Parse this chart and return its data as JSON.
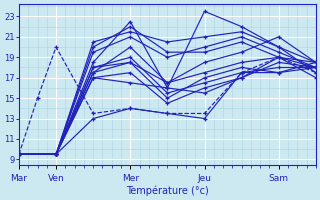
{
  "xlabel": "Température (°c)",
  "bg_color": "#cce8f0",
  "line_color": "#2222bb",
  "grid_major_color": "#ffffff",
  "grid_minor_color": "#aad4e0",
  "ylim": [
    8.5,
    24.2
  ],
  "yticks": [
    9,
    11,
    13,
    15,
    17,
    19,
    21,
    23
  ],
  "xlim": [
    0,
    96
  ],
  "day_ticks": [
    0,
    12,
    36,
    60,
    84
  ],
  "day_labels": [
    "Mar",
    "Ven",
    "Mer",
    "Jeu",
    "Sam"
  ],
  "series": [
    {
      "x": [
        0,
        12,
        24,
        36,
        48,
        60,
        72,
        84,
        96
      ],
      "y": [
        9.5,
        9.5,
        20.0,
        22.0,
        19.5,
        19.5,
        20.5,
        19.0,
        18.0
      ],
      "style": "-"
    },
    {
      "x": [
        0,
        12,
        24,
        36,
        48,
        60,
        72,
        84,
        96
      ],
      "y": [
        9.5,
        9.5,
        20.5,
        21.5,
        20.5,
        21.0,
        21.5,
        20.0,
        18.5
      ],
      "style": "-"
    },
    {
      "x": [
        0,
        12,
        24,
        36,
        48,
        60,
        72,
        84,
        96
      ],
      "y": [
        9.5,
        9.5,
        19.5,
        21.0,
        19.0,
        20.0,
        21.0,
        19.5,
        18.0
      ],
      "style": "-"
    },
    {
      "x": [
        0,
        12,
        24,
        36,
        48,
        60,
        72,
        84,
        96
      ],
      "y": [
        9.5,
        9.5,
        18.5,
        22.5,
        16.0,
        23.5,
        22.0,
        20.0,
        17.5
      ],
      "style": "-"
    },
    {
      "x": [
        0,
        12,
        24,
        36,
        48,
        60,
        72,
        84,
        96
      ],
      "y": [
        9.5,
        9.5,
        18.0,
        18.5,
        15.0,
        17.0,
        18.0,
        17.5,
        18.5
      ],
      "style": "-"
    },
    {
      "x": [
        0,
        12,
        24,
        36,
        48,
        60,
        72,
        84,
        96
      ],
      "y": [
        9.5,
        9.5,
        18.0,
        19.0,
        15.5,
        16.5,
        17.5,
        18.0,
        18.0
      ],
      "style": "-"
    },
    {
      "x": [
        0,
        12,
        24,
        36,
        48,
        60,
        72,
        84,
        96
      ],
      "y": [
        9.5,
        9.5,
        17.5,
        18.5,
        16.5,
        17.5,
        18.5,
        19.0,
        18.5
      ],
      "style": "-"
    },
    {
      "x": [
        0,
        6,
        12,
        24,
        36,
        48,
        60,
        72,
        84,
        96
      ],
      "y": [
        9.5,
        15.0,
        20.0,
        13.5,
        14.0,
        13.5,
        13.5,
        17.5,
        19.0,
        17.5
      ],
      "style": "--"
    },
    {
      "x": [
        0,
        12,
        24,
        36,
        48,
        60,
        72,
        84,
        96
      ],
      "y": [
        9.5,
        9.5,
        17.0,
        17.5,
        14.5,
        16.0,
        17.0,
        18.5,
        18.0
      ],
      "style": "-"
    },
    {
      "x": [
        0,
        12,
        24,
        36,
        48,
        60,
        72,
        84,
        96
      ],
      "y": [
        9.5,
        9.5,
        17.0,
        16.5,
        16.0,
        15.5,
        17.0,
        19.0,
        17.0
      ],
      "style": "-"
    },
    {
      "x": [
        0,
        12,
        24,
        36,
        48,
        60,
        72,
        84,
        96
      ],
      "y": [
        9.5,
        9.5,
        13.0,
        14.0,
        13.5,
        13.0,
        17.5,
        17.5,
        18.0
      ],
      "style": "-"
    },
    {
      "x": [
        0,
        12,
        24,
        36,
        48,
        60,
        72,
        84,
        96
      ],
      "y": [
        9.5,
        9.5,
        17.5,
        20.0,
        16.5,
        18.5,
        19.5,
        21.0,
        18.5
      ],
      "style": "-"
    }
  ]
}
